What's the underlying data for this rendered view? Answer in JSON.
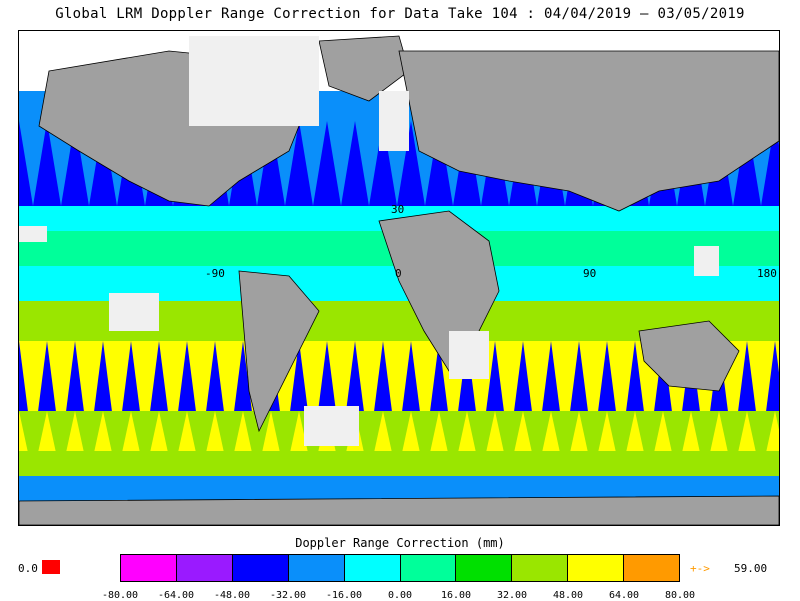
{
  "title": "Global LRM Doppler Range Correction for Data Take 104 : 04/04/2019 – 03/05/2019",
  "map": {
    "lat_labels": [
      "30"
    ],
    "lon_labels": [
      "-90",
      "0",
      "90",
      "180"
    ]
  },
  "colorbar": {
    "title": "Doppler Range Correction (mm)",
    "colors": [
      "#ff00ff",
      "#9a1aff",
      "#0000ff",
      "#0a8ffa",
      "#00ffff",
      "#00ff9a",
      "#00e000",
      "#9ae600",
      "#ffff00",
      "#ff9a00"
    ],
    "ticks": [
      "-80.00",
      "-64.00",
      "-48.00",
      "-32.00",
      "-16.00",
      "0.00",
      "16.00",
      "32.00",
      "48.00",
      "64.00",
      "80.00"
    ],
    "null_value": "0.0",
    "null_color": "#ff0000",
    "max_arrow": "+->",
    "max_value": "59.00",
    "max_color": "#ff9a00"
  },
  "colors": {
    "land": "#a0a0a0",
    "no_data": "#f0f0f0",
    "coastline": "#000000",
    "track_mark": "#c81e1e"
  }
}
